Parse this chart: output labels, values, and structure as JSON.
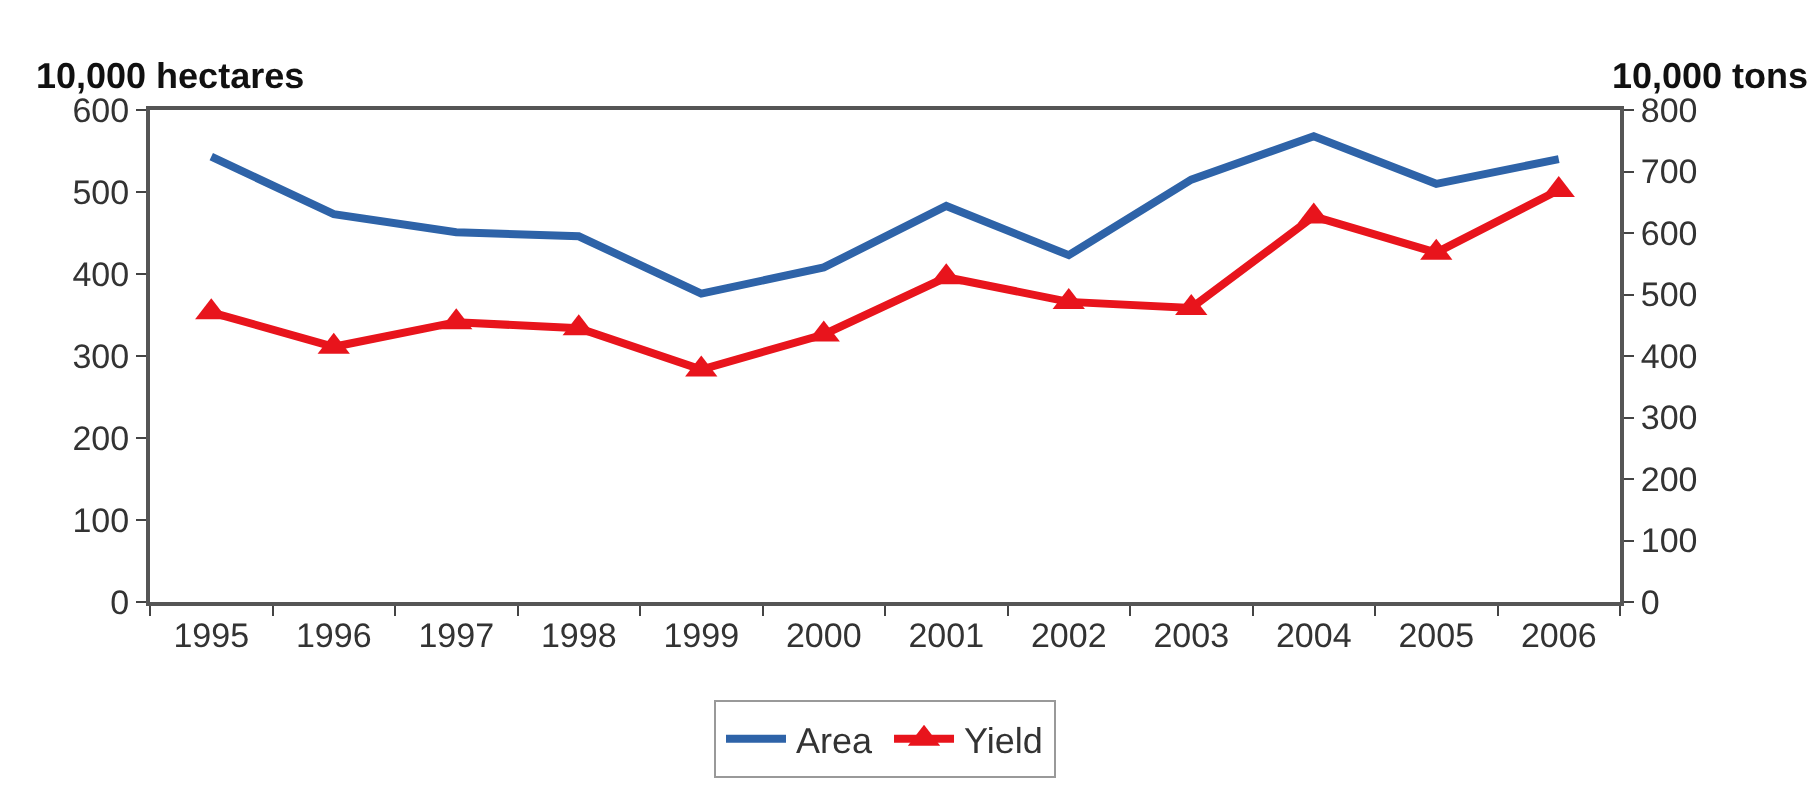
{
  "chart_data": {
    "type": "line",
    "ylabel": "10,000 hectares",
    "y2label": "10,000 tons",
    "categories": [
      "1995",
      "1996",
      "1997",
      "1998",
      "1999",
      "2000",
      "2001",
      "2002",
      "2003",
      "2004",
      "2005",
      "2006"
    ],
    "series": [
      {
        "name": "Area",
        "color": "#2e63a8",
        "marker": "none",
        "values": [
          543,
          473,
          451,
          446,
          376,
          408,
          483,
          423,
          515,
          568,
          510,
          540
        ]
      },
      {
        "name": "Yield",
        "color": "#e8141c",
        "marker": "triangle",
        "axis": "y2",
        "values": [
          471,
          415,
          455,
          445,
          378,
          435,
          528,
          488,
          478,
          627,
          568,
          670
        ]
      }
    ],
    "ylim": [
      0,
      600
    ],
    "yticks": [
      0,
      100,
      200,
      300,
      400,
      500,
      600
    ],
    "y2lim": [
      0,
      800
    ],
    "y2ticks": [
      0,
      100,
      200,
      300,
      400,
      500,
      600,
      700,
      800
    ],
    "legend": "bottom"
  }
}
